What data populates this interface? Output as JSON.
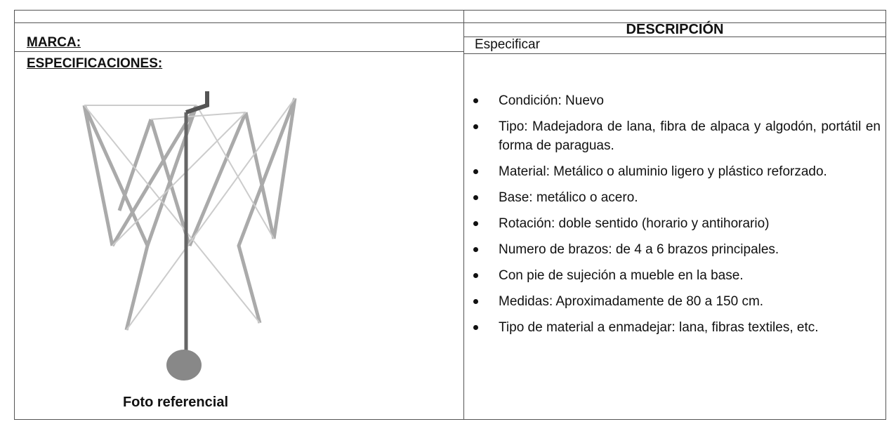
{
  "table": {
    "brand_label": "MARCA:",
    "specs_label": "ESPECIFICACIONES:",
    "description_header": "DESCRIPCIÓN",
    "brand_value": "Especificar",
    "photo_caption": "Foto referencial",
    "items": [
      "Condición: Nuevo",
      "Tipo: Madejadora de lana, fibra de alpaca y algodón, portátil en forma de paraguas.",
      "Material: Metálico o aluminio ligero y plástico reforzado.",
      "Base: metálico o acero.",
      "Rotación: doble sentido (horario y antihorario)",
      "Numero de brazos: de 4 a 6 brazos principales.",
      "Con pie de sujeción a mueble en la base.",
      "Medidas: Aproximadamente de 80 a 150 cm.",
      "Tipo de material a enmadejar: lana, fibras textiles, etc."
    ]
  }
}
